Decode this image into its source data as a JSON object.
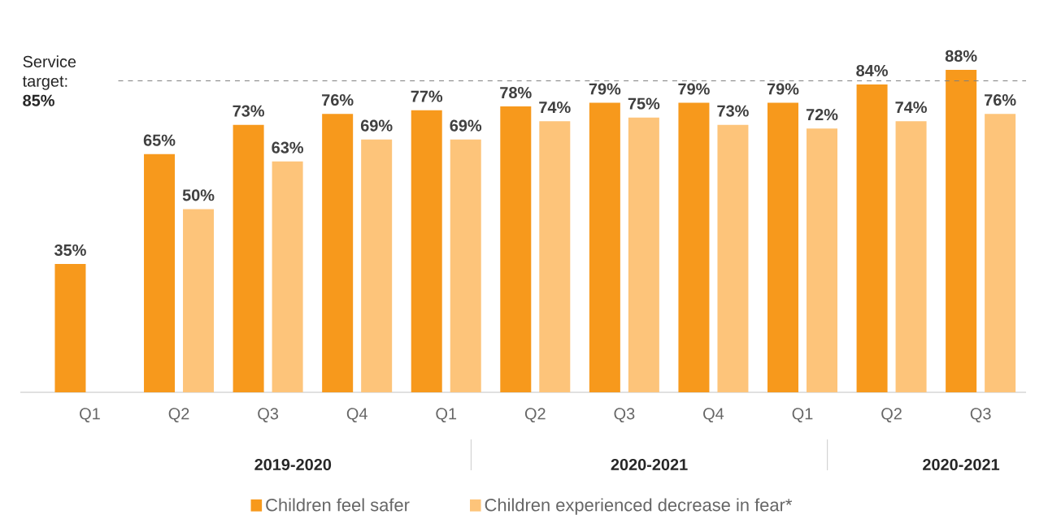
{
  "chart_data": {
    "type": "bar",
    "categories": [
      "Q1",
      "Q2",
      "Q3",
      "Q4",
      "Q1",
      "Q2",
      "Q3",
      "Q4",
      "Q1",
      "Q2",
      "Q3"
    ],
    "series": [
      {
        "name": "Children feel safer",
        "color": "#f7991c",
        "values": [
          35,
          65,
          73,
          76,
          77,
          78,
          79,
          79,
          79,
          84,
          88
        ],
        "value_labels": [
          "35%",
          "65%",
          "73%",
          "76%",
          "77%",
          "78%",
          "79%",
          "79%",
          "79%",
          "84%",
          "88%"
        ]
      },
      {
        "name": "Children experienced decrease in fear*",
        "color": "#fdc47a",
        "values": [
          null,
          50,
          63,
          69,
          69,
          74,
          75,
          73,
          72,
          74,
          76
        ],
        "value_labels": [
          null,
          "50%",
          "63%",
          "69%",
          "69%",
          "74%",
          "75%",
          "73%",
          "72%",
          "74%",
          "76%"
        ]
      }
    ],
    "tick_labels": "x",
    "legend": "bottom",
    "grid": false,
    "ref_lines": [
      {
        "axis": "y",
        "value": 85,
        "label": "Service target: **85%**",
        "color": "#7f7f7f",
        "line_style": "dashed"
      }
    ],
    "annotations": [
      "2019-2020",
      "2020-2021",
      "2020-2021"
    ]
  }
}
